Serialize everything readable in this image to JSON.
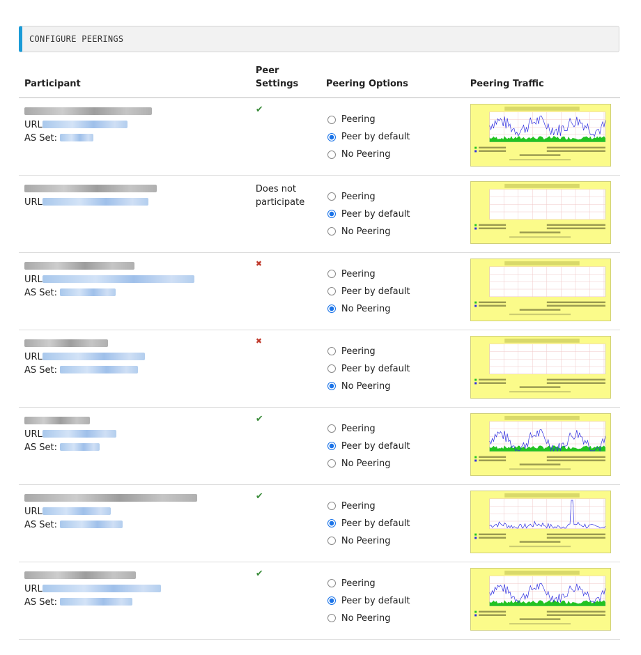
{
  "section": {
    "title": "CONFIGURE PEERINGS"
  },
  "columns": {
    "participant": "Participant",
    "peer_settings": "Peer Settings",
    "peering_options": "Peering Options",
    "peering_traffic": "Peering Traffic"
  },
  "labels": {
    "url": "URL",
    "as_set": "AS Set:"
  },
  "option_labels": [
    "Peering",
    "Peer by default",
    "No Peering"
  ],
  "not_participate": "Does not participate",
  "colors": {
    "accent": "#1a9bd7",
    "check": "#3c8d3c",
    "cross": "#c0392b",
    "graph_bg": "#fbfb8a"
  },
  "rows": [
    {
      "status": "check-icon",
      "selected": 1,
      "has_as_set": true
    },
    {
      "status": "none",
      "selected": 1,
      "has_as_set": false
    },
    {
      "status": "cross-icon",
      "selected": 2,
      "has_as_set": true
    },
    {
      "status": "cross-icon",
      "selected": 2,
      "has_as_set": true
    },
    {
      "status": "check-icon",
      "selected": 1,
      "has_as_set": true
    },
    {
      "status": "check-icon",
      "selected": 1,
      "has_as_set": true
    },
    {
      "status": "check-icon",
      "selected": 1,
      "has_as_set": true
    }
  ]
}
